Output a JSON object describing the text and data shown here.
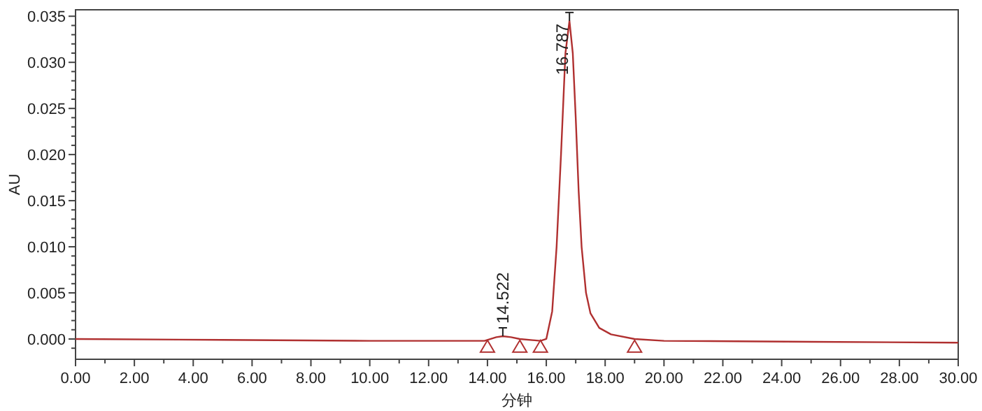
{
  "chart_data": {
    "type": "line",
    "xlabel": "分钟",
    "ylabel": "AU",
    "xlim": [
      0,
      30
    ],
    "ylim": [
      -0.0022,
      0.0357
    ],
    "xticks": [
      {
        "value": 0,
        "label": "0.00"
      },
      {
        "value": 1,
        "label": null
      },
      {
        "value": 2,
        "label": "2.00"
      },
      {
        "value": 3,
        "label": null
      },
      {
        "value": 4,
        "label": "4.00"
      },
      {
        "value": 5,
        "label": null
      },
      {
        "value": 6,
        "label": "6.00"
      },
      {
        "value": 7,
        "label": null
      },
      {
        "value": 8,
        "label": "8.00"
      },
      {
        "value": 9,
        "label": null
      },
      {
        "value": 10,
        "label": "10.00"
      },
      {
        "value": 11,
        "label": null
      },
      {
        "value": 12,
        "label": "12.00"
      },
      {
        "value": 13,
        "label": null
      },
      {
        "value": 14,
        "label": "14.00"
      },
      {
        "value": 15,
        "label": null
      },
      {
        "value": 16,
        "label": "16.00"
      },
      {
        "value": 17,
        "label": null
      },
      {
        "value": 18,
        "label": "18.00"
      },
      {
        "value": 19,
        "label": null
      },
      {
        "value": 20,
        "label": "20.00"
      },
      {
        "value": 21,
        "label": null
      },
      {
        "value": 22,
        "label": "22.00"
      },
      {
        "value": 23,
        "label": null
      },
      {
        "value": 24,
        "label": "24.00"
      },
      {
        "value": 25,
        "label": null
      },
      {
        "value": 26,
        "label": "26.00"
      },
      {
        "value": 27,
        "label": null
      },
      {
        "value": 28,
        "label": "28.00"
      },
      {
        "value": 29,
        "label": null
      },
      {
        "value": 30,
        "label": "30.00"
      }
    ],
    "yticks": [
      {
        "value": -0.001,
        "label": null
      },
      {
        "value": 0,
        "label": "0.000"
      },
      {
        "value": 0.001,
        "label": null
      },
      {
        "value": 0.002,
        "label": null
      },
      {
        "value": 0.003,
        "label": null
      },
      {
        "value": 0.004,
        "label": null
      },
      {
        "value": 0.005,
        "label": "0.005"
      },
      {
        "value": 0.006,
        "label": null
      },
      {
        "value": 0.007,
        "label": null
      },
      {
        "value": 0.008,
        "label": null
      },
      {
        "value": 0.009,
        "label": null
      },
      {
        "value": 0.01,
        "label": "0.010"
      },
      {
        "value": 0.011,
        "label": null
      },
      {
        "value": 0.012,
        "label": null
      },
      {
        "value": 0.013,
        "label": null
      },
      {
        "value": 0.014,
        "label": null
      },
      {
        "value": 0.015,
        "label": "0.015"
      },
      {
        "value": 0.016,
        "label": null
      },
      {
        "value": 0.017,
        "label": null
      },
      {
        "value": 0.018,
        "label": null
      },
      {
        "value": 0.019,
        "label": null
      },
      {
        "value": 0.02,
        "label": "0.020"
      },
      {
        "value": 0.021,
        "label": null
      },
      {
        "value": 0.022,
        "label": null
      },
      {
        "value": 0.023,
        "label": null
      },
      {
        "value": 0.024,
        "label": null
      },
      {
        "value": 0.025,
        "label": "0.025"
      },
      {
        "value": 0.026,
        "label": null
      },
      {
        "value": 0.027,
        "label": null
      },
      {
        "value": 0.028,
        "label": null
      },
      {
        "value": 0.029,
        "label": null
      },
      {
        "value": 0.03,
        "label": "0.030"
      },
      {
        "value": 0.031,
        "label": null
      },
      {
        "value": 0.032,
        "label": null
      },
      {
        "value": 0.033,
        "label": null
      },
      {
        "value": 0.034,
        "label": null
      },
      {
        "value": 0.035,
        "label": "0.035"
      }
    ],
    "grid": false,
    "series": [
      {
        "color": "#b03030",
        "x": [
          0,
          5,
          10,
          13.9,
          14.3,
          14.522,
          14.8,
          15.1,
          15.8,
          16.0,
          16.2,
          16.35,
          16.5,
          16.65,
          16.787,
          16.9,
          17.0,
          17.1,
          17.2,
          17.35,
          17.5,
          17.8,
          18.2,
          19.0,
          20,
          25,
          30
        ],
        "values": [
          0.0,
          -0.0001,
          -0.0002,
          -0.0002,
          0.0002,
          0.0003,
          0.0002,
          0.0,
          -0.0002,
          0.0,
          0.003,
          0.01,
          0.02,
          0.031,
          0.0345,
          0.031,
          0.024,
          0.016,
          0.01,
          0.005,
          0.0028,
          0.0012,
          0.0005,
          0.0,
          -0.0002,
          -0.0003,
          -0.0004
        ]
      },
      {
        "type": "scatter",
        "marker": "triangle",
        "color": "#b03030",
        "x": [
          14.0,
          15.1,
          15.8,
          19.0
        ],
        "values": [
          -0.0009,
          -0.0009,
          -0.0009,
          -0.0009
        ]
      }
    ],
    "annotations": [
      {
        "text": "14.522",
        "x": 14.522,
        "y": 0.0003
      },
      {
        "text": "16.787",
        "x": 16.787,
        "y": 0.0345
      }
    ]
  }
}
